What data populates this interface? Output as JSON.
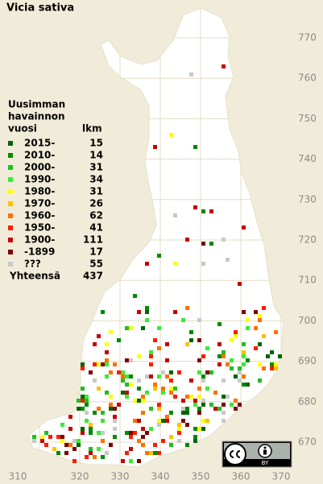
{
  "title": "Vicia sativa",
  "legend": {
    "heading": [
      "Uusimman",
      "havainnon",
      "vuosi"
    ],
    "count_heading": "lkm",
    "entries": [
      {
        "label": "2015-",
        "color": "#006400",
        "count": 15
      },
      {
        "label": "2010-",
        "color": "#008a00",
        "count": 14
      },
      {
        "label": "2000-",
        "color": "#1fbf1f",
        "count": 31
      },
      {
        "label": "1990-",
        "color": "#33ee33",
        "count": 34
      },
      {
        "label": "1980-",
        "color": "#ffff00",
        "count": 31
      },
      {
        "label": "1970-",
        "color": "#ffc000",
        "count": 26
      },
      {
        "label": "1960-",
        "color": "#ff7000",
        "count": 62
      },
      {
        "label": "1950-",
        "color": "#ff1a00",
        "count": 41
      },
      {
        "label": "1900-",
        "color": "#c80000",
        "count": 111
      },
      {
        "label": "-1899",
        "color": "#800000",
        "count": 17
      },
      {
        "label": "???",
        "color": "#c8c8c8",
        "count": 55
      }
    ],
    "total_label": "Yhteensä",
    "total": 437
  },
  "x_axis": {
    "ticks": [
      310,
      320,
      330,
      340,
      350,
      360,
      370
    ]
  },
  "y_axis": {
    "ticks": [
      770,
      760,
      750,
      740,
      730,
      720,
      710,
      700,
      690,
      680,
      670
    ]
  },
  "license": {
    "badge": "BY"
  }
}
